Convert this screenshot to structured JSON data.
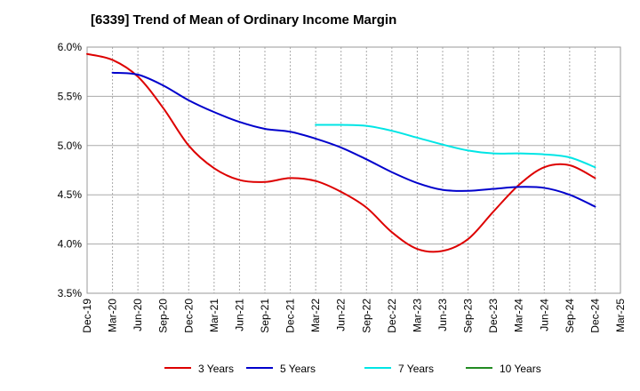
{
  "chart_data": {
    "type": "line",
    "title": "[6339]  Trend of Mean of Ordinary Income Margin",
    "xlabel": "",
    "ylabel": "",
    "x_ticks": [
      "Dec-19",
      "Mar-20",
      "Jun-20",
      "Sep-20",
      "Dec-20",
      "Mar-21",
      "Jun-21",
      "Sep-21",
      "Dec-21",
      "Mar-22",
      "Jun-22",
      "Sep-22",
      "Dec-22",
      "Mar-23",
      "Jun-23",
      "Sep-23",
      "Dec-23",
      "Mar-24",
      "Jun-24",
      "Sep-24",
      "Dec-24",
      "Mar-25"
    ],
    "y_ticks": [
      "3.5%",
      "4.0%",
      "4.5%",
      "5.0%",
      "5.5%",
      "6.0%"
    ],
    "ylim": [
      3.5,
      6.0
    ],
    "y_unit": "%",
    "grid": true,
    "legend_position": "bottom",
    "series": [
      {
        "name": "3 Years",
        "color": "#dd0000",
        "x": [
          "Dec-19",
          "Mar-20",
          "Jun-20",
          "Sep-20",
          "Dec-20",
          "Mar-21",
          "Jun-21",
          "Sep-21",
          "Dec-21",
          "Mar-22",
          "Jun-22",
          "Sep-22",
          "Dec-22",
          "Mar-23",
          "Jun-23",
          "Sep-23",
          "Dec-23",
          "Mar-24",
          "Jun-24",
          "Sep-24",
          "Dec-24"
        ],
        "values": [
          5.93,
          5.87,
          5.7,
          5.38,
          5.0,
          4.77,
          4.65,
          4.63,
          4.67,
          4.64,
          4.53,
          4.37,
          4.12,
          3.95,
          3.93,
          4.05,
          4.33,
          4.6,
          4.78,
          4.8,
          4.67
        ]
      },
      {
        "name": "5 Years",
        "color": "#0000cc",
        "x": [
          "Mar-20",
          "Jun-20",
          "Sep-20",
          "Dec-20",
          "Mar-21",
          "Jun-21",
          "Sep-21",
          "Dec-21",
          "Mar-22",
          "Jun-22",
          "Sep-22",
          "Dec-22",
          "Mar-23",
          "Jun-23",
          "Sep-23",
          "Dec-23",
          "Mar-24",
          "Jun-24",
          "Sep-24",
          "Dec-24"
        ],
        "values": [
          5.74,
          5.72,
          5.61,
          5.46,
          5.34,
          5.24,
          5.17,
          5.14,
          5.07,
          4.98,
          4.86,
          4.73,
          4.62,
          4.55,
          4.54,
          4.56,
          4.58,
          4.57,
          4.5,
          4.38
        ]
      },
      {
        "name": "7 Years",
        "color": "#00e5e5",
        "x": [
          "Mar-22",
          "Jun-22",
          "Sep-22",
          "Dec-22",
          "Mar-23",
          "Jun-23",
          "Sep-23",
          "Dec-23",
          "Mar-24",
          "Jun-24",
          "Sep-24",
          "Dec-24"
        ],
        "values": [
          5.21,
          5.21,
          5.2,
          5.15,
          5.08,
          5.01,
          4.95,
          4.92,
          4.92,
          4.91,
          4.88,
          4.78
        ]
      },
      {
        "name": "10 Years",
        "color": "#228b22",
        "x": [],
        "values": []
      }
    ]
  }
}
